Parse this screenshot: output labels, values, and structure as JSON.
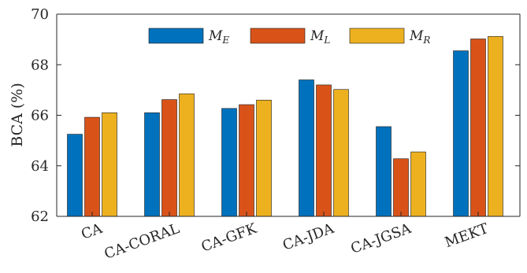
{
  "chart_data": {
    "type": "bar",
    "categories": [
      "CA",
      "CA-CORAL",
      "CA-GFK",
      "CA-JDA",
      "CA-JGSA",
      "MEKT"
    ],
    "series": [
      {
        "name_main": "M",
        "name_sub": "E",
        "color": "#0072bd",
        "values": [
          65.25,
          66.1,
          66.27,
          67.4,
          65.55,
          68.55
        ]
      },
      {
        "name_main": "M",
        "name_sub": "L",
        "color": "#d95319",
        "values": [
          65.92,
          66.62,
          66.42,
          67.2,
          64.28,
          69.02
        ]
      },
      {
        "name_main": "M",
        "name_sub": "R",
        "color": "#edb120",
        "values": [
          66.1,
          66.85,
          66.6,
          67.02,
          64.55,
          69.12
        ]
      }
    ],
    "ylabel": "BCA (%)",
    "ylim": [
      62,
      70
    ],
    "yticks": [
      62,
      64,
      66,
      68,
      70
    ],
    "legend_position": "top",
    "grid": false
  }
}
